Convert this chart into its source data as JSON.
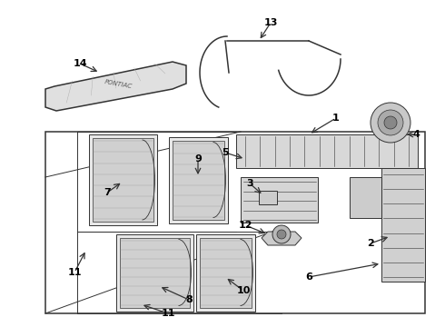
{
  "bg_color": "#ffffff",
  "line_color": "#333333",
  "label_color": "#000000",
  "fig_width": 4.9,
  "fig_height": 3.6,
  "dpi": 100,
  "pontiac_text": "PONTIAC"
}
